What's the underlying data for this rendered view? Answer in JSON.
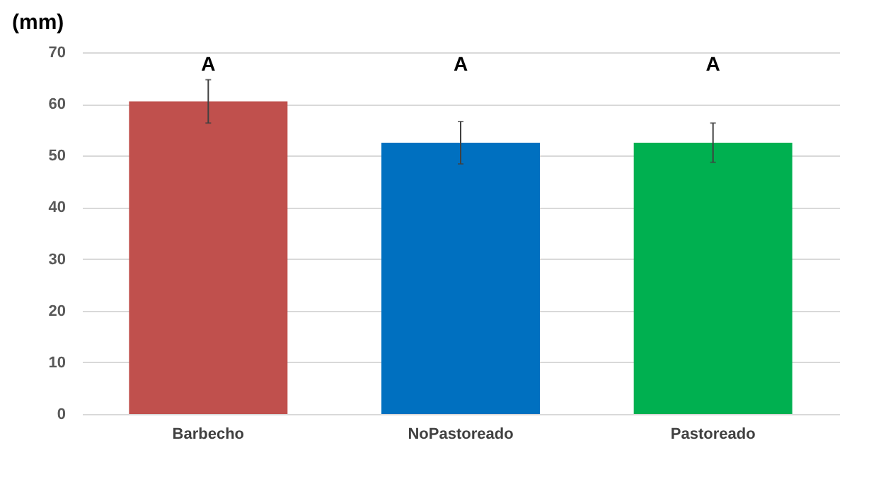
{
  "chart_data": {
    "type": "bar",
    "ylabel": "(mm)",
    "categories": [
      "Barbecho",
      "NoPastoreado",
      "Pastoreado"
    ],
    "values": [
      60.5,
      52.5,
      52.5
    ],
    "colors": [
      "#c0504d",
      "#0070c0",
      "#00b050"
    ],
    "errors": [
      4.2,
      4.1,
      3.8
    ],
    "annotations": [
      "A",
      "A",
      "A"
    ],
    "ylim": [
      0,
      70
    ],
    "yticks": [
      0,
      10,
      20,
      30,
      40,
      50,
      60,
      70
    ],
    "grid": "y"
  }
}
